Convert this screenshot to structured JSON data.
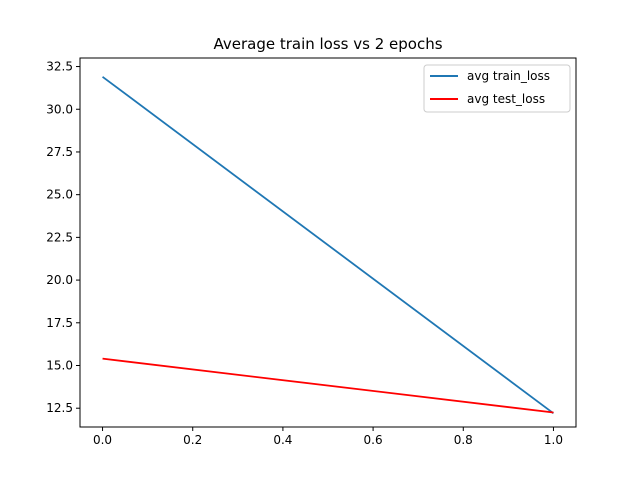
{
  "chart_data": {
    "type": "line",
    "title": "Average train loss vs 2 epochs",
    "xlabel": "",
    "ylabel": "",
    "x": [
      0.0,
      1.0
    ],
    "series": [
      {
        "name": "avg train_loss",
        "color": "#1f77b4",
        "values": [
          31.9,
          12.2
        ]
      },
      {
        "name": "avg test_loss",
        "color": "#ff0000",
        "values": [
          15.4,
          12.25
        ]
      }
    ],
    "xlim": [
      -0.05,
      1.05
    ],
    "ylim": [
      11.4,
      33.0
    ],
    "xticks": [
      0.0,
      0.2,
      0.4,
      0.6,
      0.8,
      1.0
    ],
    "xtick_labels": [
      "0.0",
      "0.2",
      "0.4",
      "0.6",
      "0.8",
      "1.0"
    ],
    "yticks": [
      12.5,
      15.0,
      17.5,
      20.0,
      22.5,
      25.0,
      27.5,
      30.0,
      32.5
    ],
    "ytick_labels": [
      "12.5",
      "15.0",
      "17.5",
      "20.0",
      "22.5",
      "25.0",
      "27.5",
      "30.0",
      "32.5"
    ],
    "grid": false,
    "legend_position": "top-right"
  }
}
